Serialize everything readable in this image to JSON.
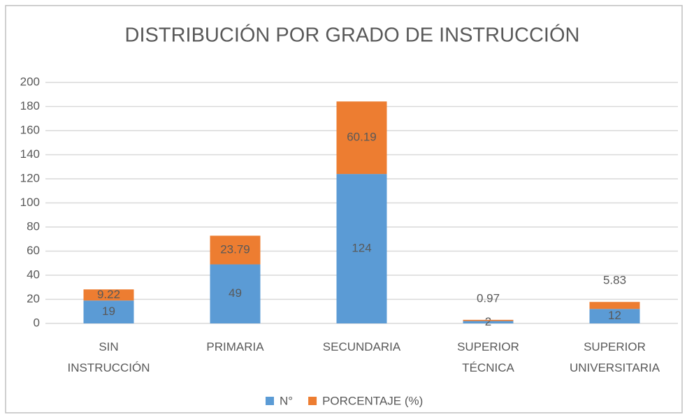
{
  "chart_data": {
    "type": "stacked_bar",
    "title": "DISTRIBUCIÓN POR GRADO DE INSTRUCCIÓN",
    "categories": [
      "SIN INSTRUCCIÓN",
      "PRIMARIA",
      "SECUNDARIA",
      "SUPERIOR TÉCNICA",
      "SUPERIOR UNIVERSITARIA"
    ],
    "series": [
      {
        "name": "N°",
        "color": "#5b9bd5",
        "values": [
          19,
          49,
          124,
          2,
          12
        ]
      },
      {
        "name": "PORCENTAJE (%)",
        "color": "#ed7d31",
        "values": [
          9.22,
          23.79,
          60.19,
          0.97,
          5.83
        ]
      }
    ],
    "ylim": [
      0,
      200
    ],
    "yticks": [
      0,
      20,
      40,
      60,
      80,
      100,
      120,
      140,
      160,
      180,
      200
    ],
    "grid": true,
    "legend": "bottom"
  }
}
